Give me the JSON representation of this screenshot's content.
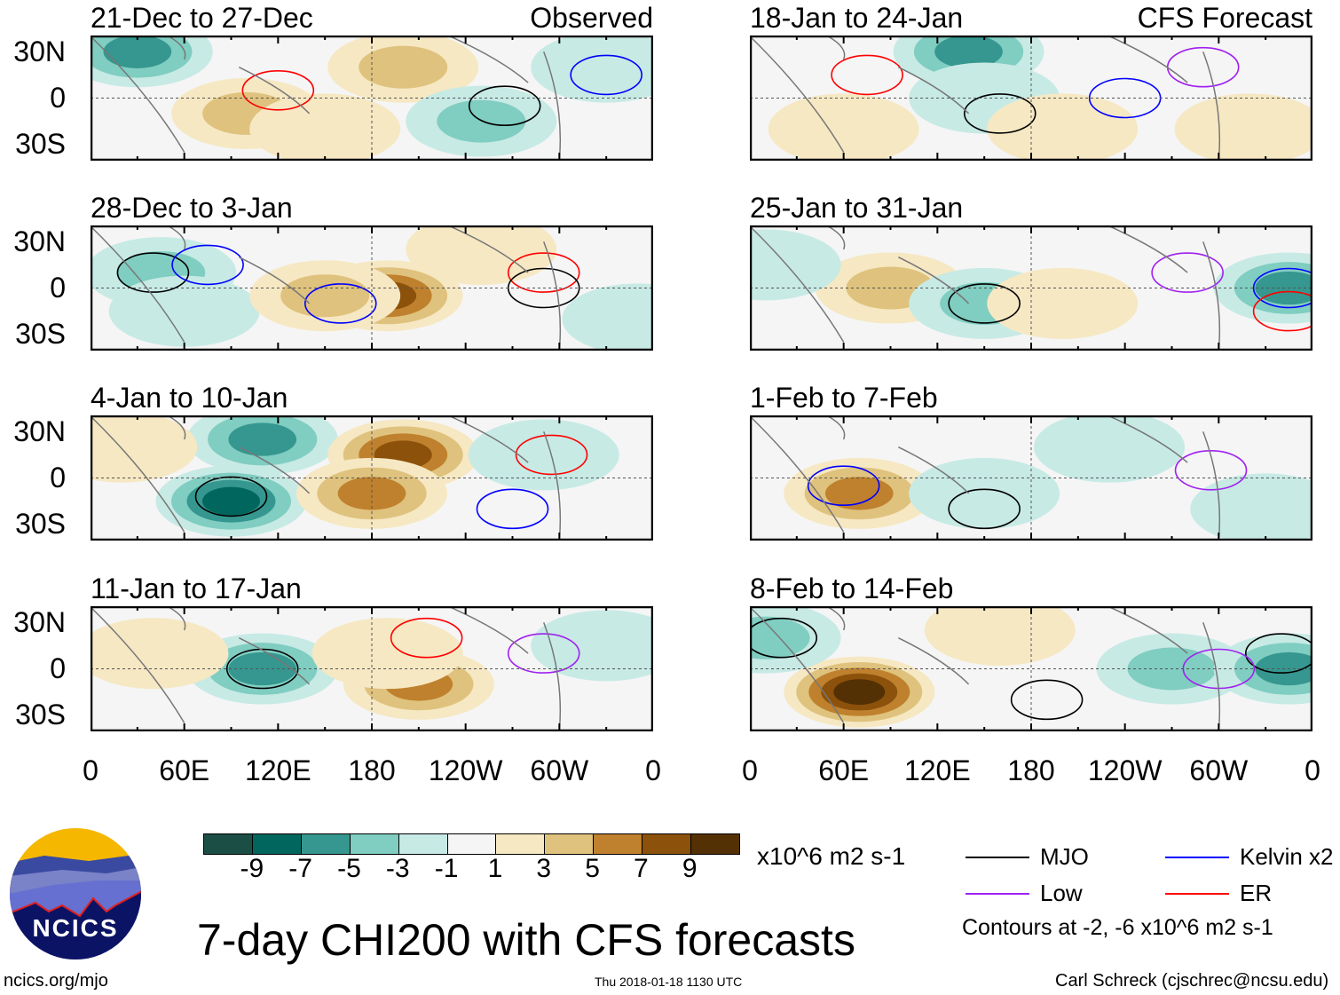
{
  "header": {
    "observed_label": "Observed",
    "forecast_label": "CFS Forecast"
  },
  "lat_labels": [
    "30N",
    "0",
    "30S"
  ],
  "lon_labels": [
    "0",
    "60E",
    "120E",
    "180",
    "120W",
    "60W",
    "0"
  ],
  "colorbar": {
    "ticks": [
      "-9",
      "-7",
      "-5",
      "-3",
      "-1",
      "1",
      "3",
      "5",
      "7",
      "9"
    ],
    "colors": [
      "#1b4f46",
      "#01665e",
      "#35978f",
      "#80cdc1",
      "#c7eae5",
      "#f5f5f5",
      "#f6e8c3",
      "#dfc27d",
      "#bf812d",
      "#8c510a",
      "#543005"
    ],
    "units": "x10^6 m2 s-1"
  },
  "title": "7-day CHI200 with CFS forecasts",
  "legend": {
    "items": [
      {
        "label": "MJO",
        "color": "#000000"
      },
      {
        "label": "Kelvin x2",
        "color": "#0000ff"
      },
      {
        "label": "Low",
        "color": "#a020f0"
      },
      {
        "label": "ER",
        "color": "#ff0000"
      }
    ],
    "note": "Contours at -2, -6 x10^6 m2 s-1"
  },
  "logo_text": "NCICS",
  "footer": {
    "url": "ncics.org/mjo",
    "timestamp": "Thu 2018-01-18 1130 UTC",
    "author": "Carl Schreck (cjschrec@ncsu.edu)"
  },
  "chart_data": {
    "type": "heatmap",
    "variable": "CHI200 anomaly",
    "lon_range": [
      0,
      360
    ],
    "lat_range": [
      -40,
      40
    ],
    "panels": [
      {
        "title": "21-Dec to 27-Dec",
        "features": [
          [
            100,
            -10,
            5
          ],
          [
            200,
            20,
            5
          ],
          [
            150,
            -20,
            3
          ],
          [
            250,
            -15,
            -5
          ],
          [
            30,
            30,
            -7
          ],
          [
            330,
            20,
            -3
          ]
        ],
        "contours": [
          [
            265,
            -5,
            "#000000"
          ],
          [
            330,
            15,
            "#0000ff"
          ],
          [
            120,
            5,
            "#ff0000"
          ]
        ]
      },
      {
        "title": "28-Dec to 3-Jan",
        "features": [
          [
            45,
            10,
            -5
          ],
          [
            60,
            -15,
            -3
          ],
          [
            190,
            -5,
            9
          ],
          [
            150,
            -5,
            5
          ],
          [
            350,
            -20,
            -3
          ],
          [
            250,
            25,
            3
          ]
        ],
        "contours": [
          [
            40,
            10,
            "#000000"
          ],
          [
            75,
            15,
            "#0000ff"
          ],
          [
            160,
            -10,
            "#0000ff"
          ],
          [
            290,
            10,
            "#ff0000"
          ],
          [
            290,
            0,
            "#000000"
          ]
        ]
      },
      {
        "title": "4-Jan to 10-Jan",
        "features": [
          [
            90,
            -15,
            -9
          ],
          [
            110,
            25,
            -7
          ],
          [
            200,
            15,
            9
          ],
          [
            180,
            -10,
            7
          ],
          [
            290,
            15,
            -3
          ],
          [
            20,
            20,
            3
          ]
        ],
        "contours": [
          [
            90,
            -12,
            "#000000"
          ],
          [
            270,
            -20,
            "#0000ff"
          ],
          [
            295,
            15,
            "#ff0000"
          ]
        ]
      },
      {
        "title": "11-Jan to 17-Jan",
        "features": [
          [
            110,
            0,
            -7
          ],
          [
            210,
            -10,
            7
          ],
          [
            190,
            10,
            3
          ],
          [
            40,
            10,
            3
          ],
          [
            330,
            15,
            -3
          ]
        ],
        "contours": [
          [
            110,
            0,
            "#000000"
          ],
          [
            215,
            20,
            "#ff0000"
          ],
          [
            290,
            10,
            "#a020f0"
          ]
        ]
      },
      {
        "title": "18-Jan to 24-Jan",
        "features": [
          [
            140,
            30,
            -7
          ],
          [
            150,
            0,
            -3
          ],
          [
            200,
            -20,
            3
          ],
          [
            60,
            -20,
            3
          ],
          [
            320,
            -20,
            3
          ]
        ],
        "contours": [
          [
            160,
            -10,
            "#000000"
          ],
          [
            75,
            15,
            "#ff0000"
          ],
          [
            240,
            0,
            "#0000ff"
          ],
          [
            290,
            20,
            "#a020f0"
          ]
        ]
      },
      {
        "title": "25-Jan to 31-Jan",
        "features": [
          [
            90,
            0,
            5
          ],
          [
            150,
            -10,
            -5
          ],
          [
            345,
            0,
            -7
          ],
          [
            200,
            -10,
            3
          ],
          [
            10,
            15,
            -3
          ]
        ],
        "contours": [
          [
            150,
            -10,
            "#000000"
          ],
          [
            345,
            0,
            "#0000ff"
          ],
          [
            345,
            -15,
            "#ff0000"
          ],
          [
            280,
            10,
            "#a020f0"
          ]
        ]
      },
      {
        "title": "1-Feb to 7-Feb",
        "features": [
          [
            70,
            -10,
            7
          ],
          [
            230,
            20,
            -3
          ],
          [
            150,
            -10,
            -3
          ],
          [
            330,
            -20,
            -3
          ]
        ],
        "contours": [
          [
            150,
            -20,
            "#000000"
          ],
          [
            60,
            -5,
            "#0000ff"
          ],
          [
            295,
            5,
            "#a020f0"
          ]
        ]
      },
      {
        "title": "8-Feb to 14-Feb",
        "features": [
          [
            70,
            -15,
            11
          ],
          [
            270,
            0,
            -5
          ],
          [
            10,
            20,
            -5
          ],
          [
            345,
            0,
            -7
          ],
          [
            160,
            25,
            3
          ]
        ],
        "contours": [
          [
            20,
            20,
            "#000000"
          ],
          [
            340,
            10,
            "#000000"
          ],
          [
            300,
            0,
            "#a020f0"
          ],
          [
            190,
            -20,
            "#000000"
          ]
        ]
      }
    ]
  }
}
